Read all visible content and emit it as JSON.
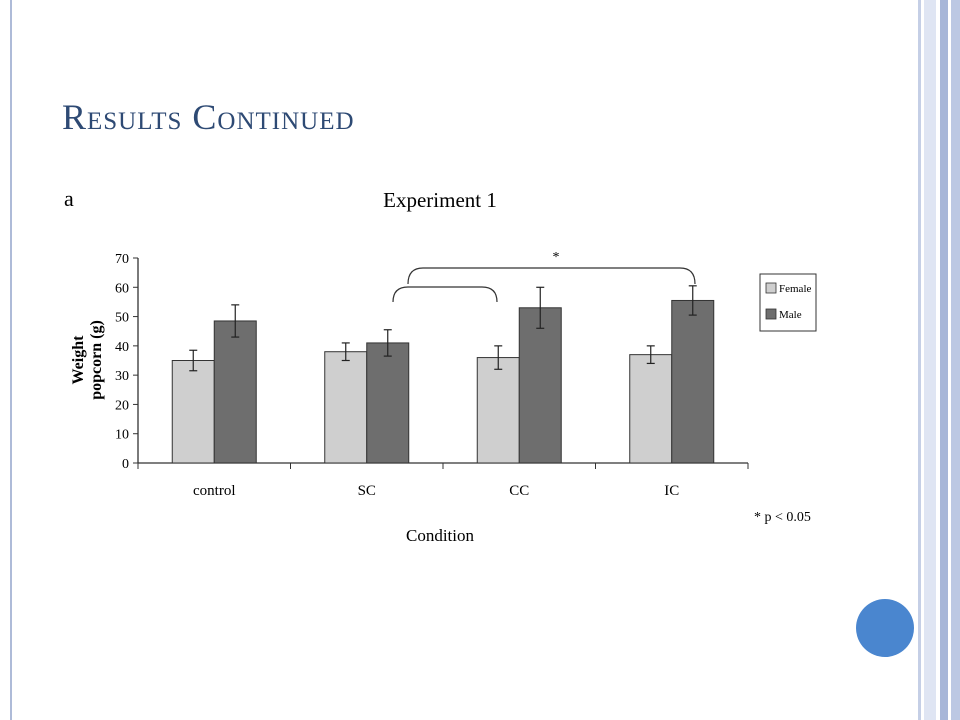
{
  "slide": {
    "title": "Results Continued"
  },
  "chart_data": {
    "type": "bar",
    "panel_letter": "a",
    "title": "Experiment 1",
    "xlabel": "Condition",
    "ylabel_line1": "Weight",
    "ylabel_line2": "popcorn (g)",
    "ylim": [
      0,
      70
    ],
    "yticks": [
      0,
      10,
      20,
      30,
      40,
      50,
      60,
      70
    ],
    "categories": [
      "control",
      "SC",
      "CC",
      "IC"
    ],
    "series": [
      {
        "name": "Female",
        "color": "#cfcfcf",
        "values": [
          35,
          38,
          36,
          37
        ],
        "errors": [
          3.5,
          3,
          4,
          3
        ]
      },
      {
        "name": "Male",
        "color": "#6e6e6e",
        "values": [
          48.5,
          41,
          53,
          55.5
        ],
        "errors": [
          5.5,
          4.5,
          7,
          5
        ]
      }
    ],
    "legend_position": "right",
    "significance_marker": "*",
    "footnote": "* p < 0.05",
    "grid": false
  },
  "colors": {
    "title": "#2e4a74",
    "accent_circle": "#4a86cf"
  }
}
